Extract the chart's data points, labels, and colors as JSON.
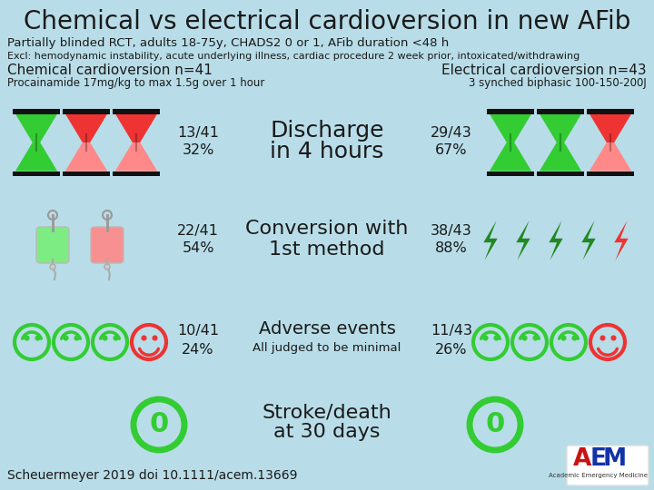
{
  "title": "Chemical vs electrical cardioversion in new AFib",
  "subtitle1": "Partially blinded RCT, adults 18-75y, CHADS2 0 or 1, AFib duration <48 h",
  "subtitle2": "Excl: hemodynamic instability, acute underlying illness, cardiac procedure 2 week prior, intoxicated/withdrawing",
  "chem_header": "Chemical cardioversion n=41",
  "chem_subheader": "Procainamide 17mg/kg to max 1.5g over 1 hour",
  "elec_header": "Electrical cardioversion n=43",
  "elec_subheader": "3 synched biphasic 100-150-200J",
  "row1_label1": "Discharge",
  "row1_label2": "in 4 hours",
  "row1_chem_num": "13/41",
  "row1_chem_pct": "32%",
  "row1_elec_num": "29/43",
  "row1_elec_pct": "67%",
  "row2_label1": "Conversion with",
  "row2_label2": "1st method",
  "row2_chem_num": "22/41",
  "row2_chem_pct": "54%",
  "row2_elec_num": "38/43",
  "row2_elec_pct": "88%",
  "row3_label1": "Adverse events",
  "row3_label2": "All judged to be minimal",
  "row3_chem_num": "10/41",
  "row3_chem_pct": "24%",
  "row3_elec_num": "11/43",
  "row3_elec_pct": "26%",
  "row4_label1": "Stroke/death",
  "row4_label2": "at 30 days",
  "footer": "Scheuermeyer 2019 doi 10.1111/acem.13669",
  "bg_color": "#b8dde8",
  "title_color": "#1a1a1a",
  "green_color": "#33cc33",
  "green_dark": "#228822",
  "red_color": "#ee3333",
  "red_light": "#ff8888",
  "dark_color": "#111111",
  "text_color": "#1a1a1a"
}
